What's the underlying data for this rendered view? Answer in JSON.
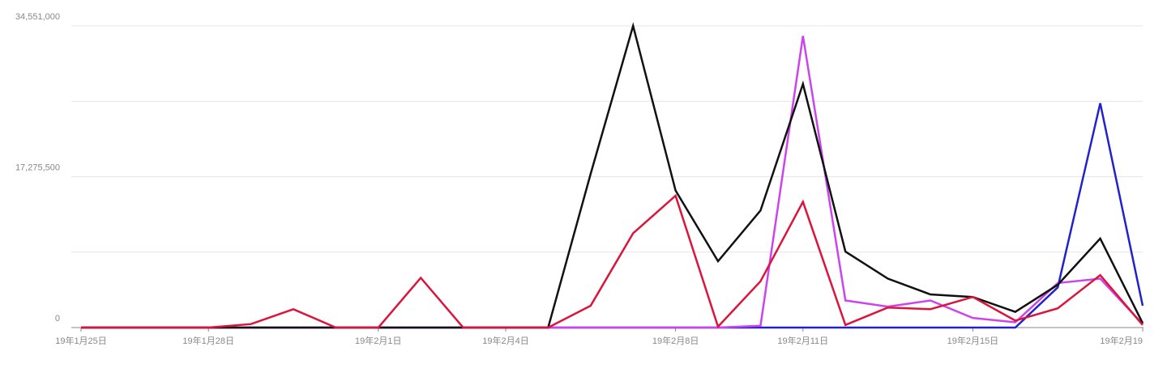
{
  "chart_data": {
    "type": "line",
    "categories": [
      "19年1月25日",
      null,
      null,
      "19年1月28日",
      null,
      null,
      null,
      "19年2月1日",
      null,
      null,
      "19年2月4日",
      null,
      null,
      null,
      "19年2月8日",
      null,
      null,
      "19年2月11日",
      null,
      null,
      null,
      "19年2月15日",
      null,
      null,
      null,
      "19年2月19"
    ],
    "series": [
      {
        "color": "#2222cc",
        "values": [
          0,
          0,
          0,
          0,
          0,
          0,
          0,
          0,
          0,
          0,
          0,
          0,
          0,
          0,
          0,
          0,
          0,
          0,
          0,
          0,
          0,
          0,
          0,
          4600000,
          25700000,
          2500000
        ]
      },
      {
        "color": "#cc44ee",
        "values": [
          0,
          0,
          0,
          0,
          0,
          0,
          0,
          0,
          0,
          0,
          0,
          0,
          0,
          0,
          0,
          0,
          200000,
          33400000,
          3100000,
          2400000,
          3100000,
          1100000,
          600000,
          5100000,
          5600000,
          400000
        ]
      },
      {
        "color": "#111111",
        "values": [
          0,
          0,
          0,
          0,
          0,
          0,
          0,
          0,
          0,
          0,
          0,
          0,
          17600000,
          34551000,
          15700000,
          7600000,
          13400000,
          27900000,
          8700000,
          5600000,
          3800000,
          3500000,
          1800000,
          4900000,
          10200000,
          500000
        ]
      },
      {
        "color": "#dc143c",
        "values": [
          0,
          0,
          0,
          0,
          400000,
          2100000,
          0,
          0,
          5700000,
          0,
          0,
          0,
          2500000,
          10800000,
          15100000,
          100000,
          5300000,
          14400000,
          300000,
          2300000,
          2100000,
          3500000,
          800000,
          2200000,
          6000000,
          300000
        ]
      }
    ],
    "ylim": [
      0,
      34551000
    ],
    "yticks": [
      0,
      {
        "value": 17275500,
        "label": "17,275,500"
      },
      {
        "value": 34551000,
        "label": "34,551,000"
      }
    ],
    "ygrid": [
      8637750,
      25913250
    ],
    "grid": true
  }
}
